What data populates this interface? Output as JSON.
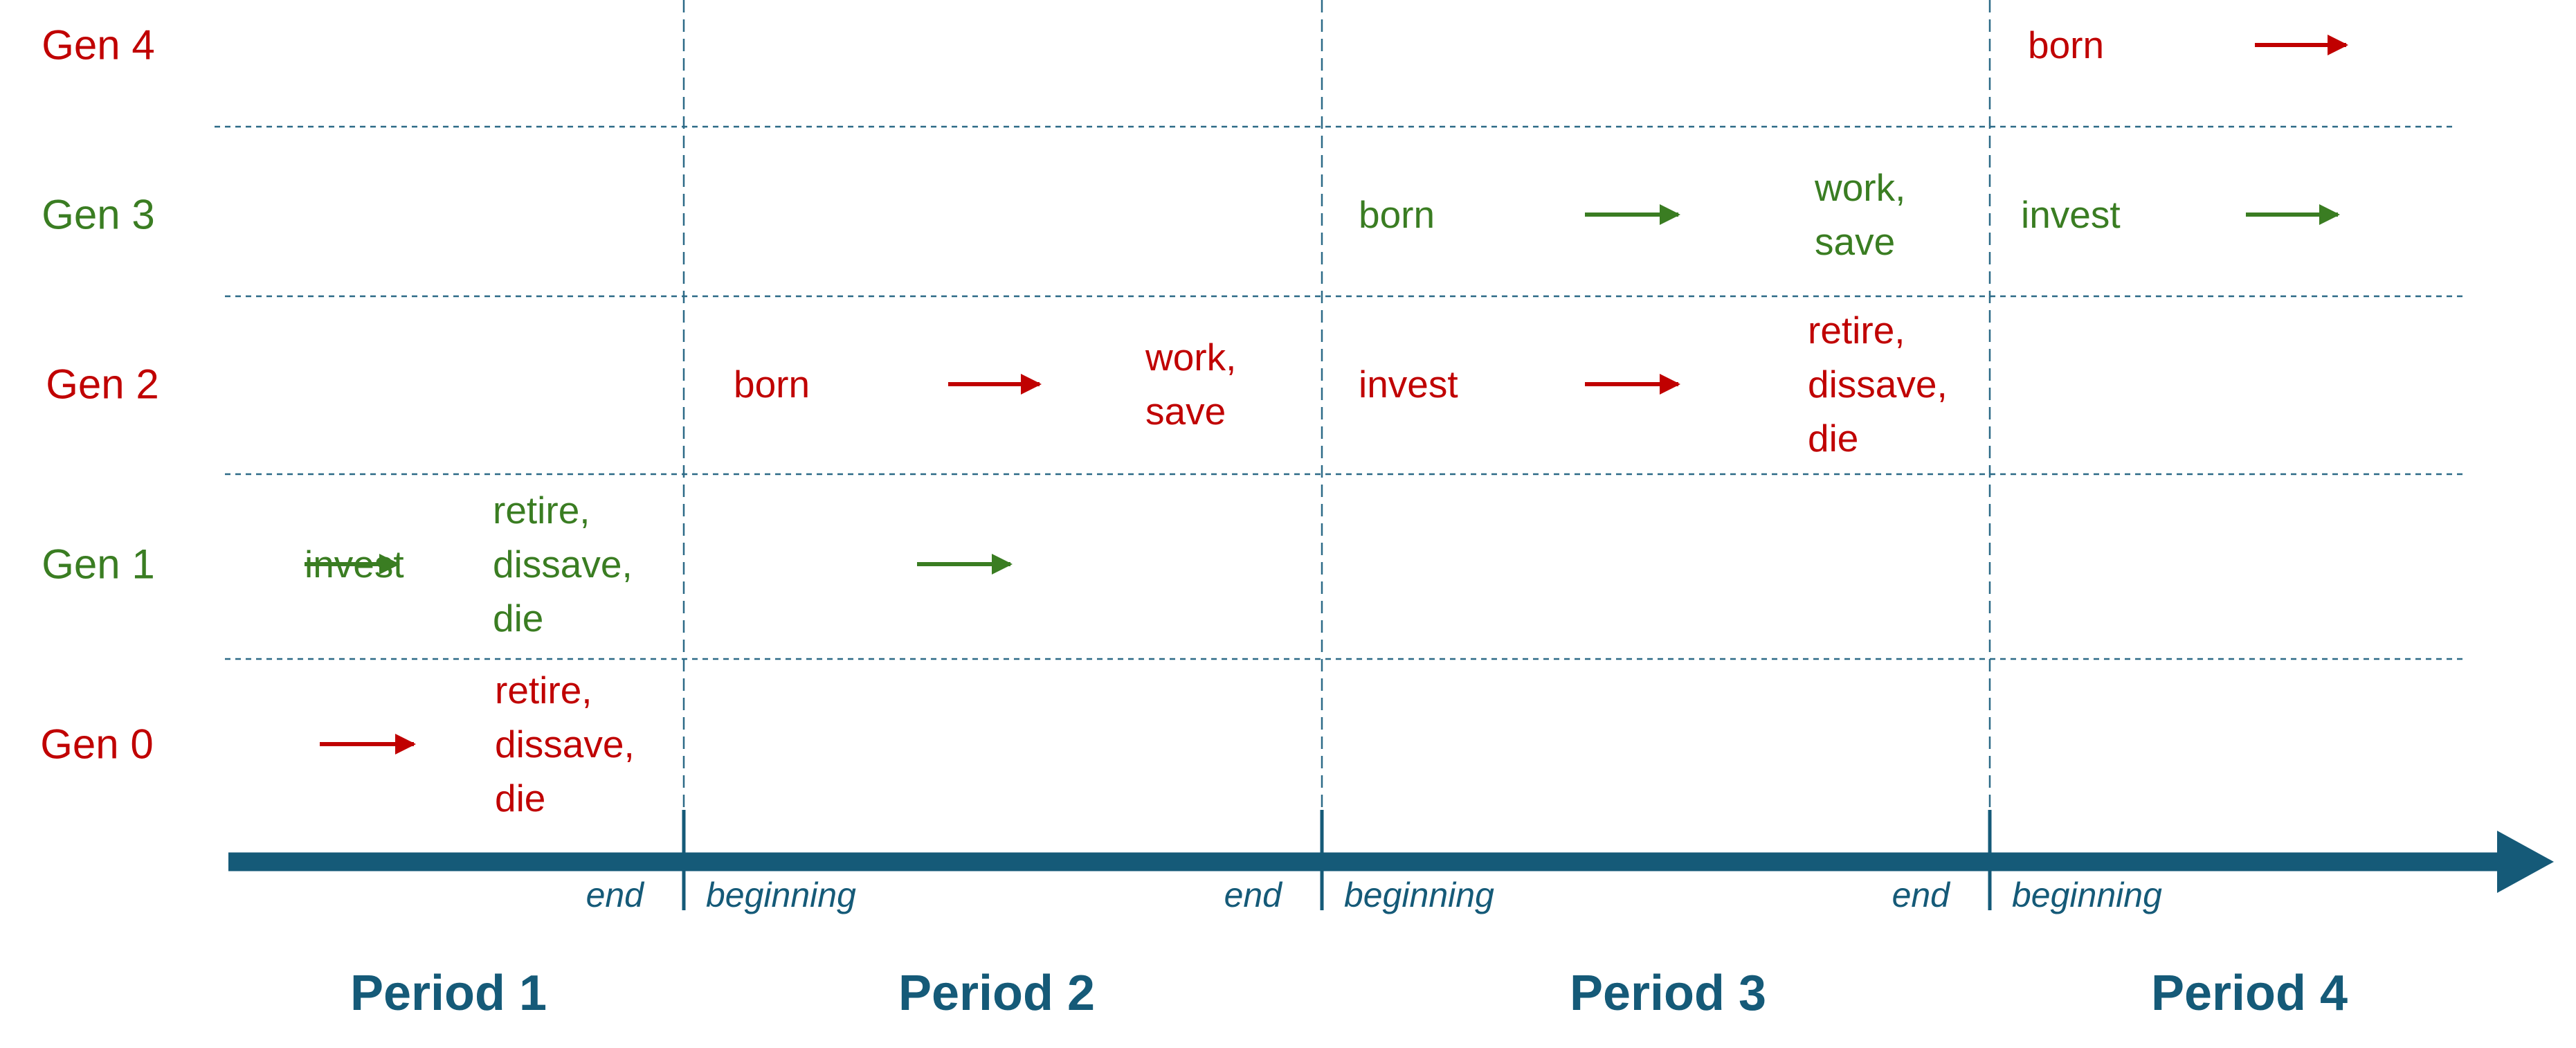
{
  "colors": {
    "red": "#c00000",
    "green": "#3a7d22",
    "axis": "#155a78",
    "grid": "#2c6a87"
  },
  "generations": [
    {
      "label": "Gen 4",
      "color": "red"
    },
    {
      "label": "Gen 3",
      "color": "green"
    },
    {
      "label": "Gen 2",
      "color": "red"
    },
    {
      "label": "Gen 1",
      "color": "green"
    },
    {
      "label": "Gen 0",
      "color": "red"
    }
  ],
  "cells": [
    {
      "gen": 0,
      "col": 0,
      "lines": [
        "born"
      ]
    },
    {
      "gen": 1,
      "col": 0,
      "lines": [
        "born"
      ]
    },
    {
      "gen": 1,
      "col": 1,
      "lines": [
        "work,",
        "save"
      ]
    },
    {
      "gen": 1,
      "col": 2,
      "lines": [
        "invest"
      ]
    },
    {
      "gen": 2,
      "col": 0,
      "lines": [
        "born"
      ]
    },
    {
      "gen": 2,
      "col": 1,
      "lines": [
        "work,",
        "save"
      ]
    },
    {
      "gen": 2,
      "col": 2,
      "lines": [
        "invest"
      ]
    },
    {
      "gen": 2,
      "col": 3,
      "lines": [
        "retire,",
        "dissave,",
        "die"
      ]
    },
    {
      "gen": 3,
      "col": 0,
      "lines": [
        "invest"
      ]
    },
    {
      "gen": 3,
      "col": 1,
      "lines": [
        "retire,",
        "dissave,",
        "die"
      ]
    },
    {
      "gen": 4,
      "col": 0,
      "lines": [
        "retire,",
        "dissave,",
        "die"
      ]
    }
  ],
  "boundary_labels": {
    "end": "end",
    "beginning": "beginning"
  },
  "periods": [
    "Period 1",
    "Period 2",
    "Period 3",
    "Period 4"
  ]
}
